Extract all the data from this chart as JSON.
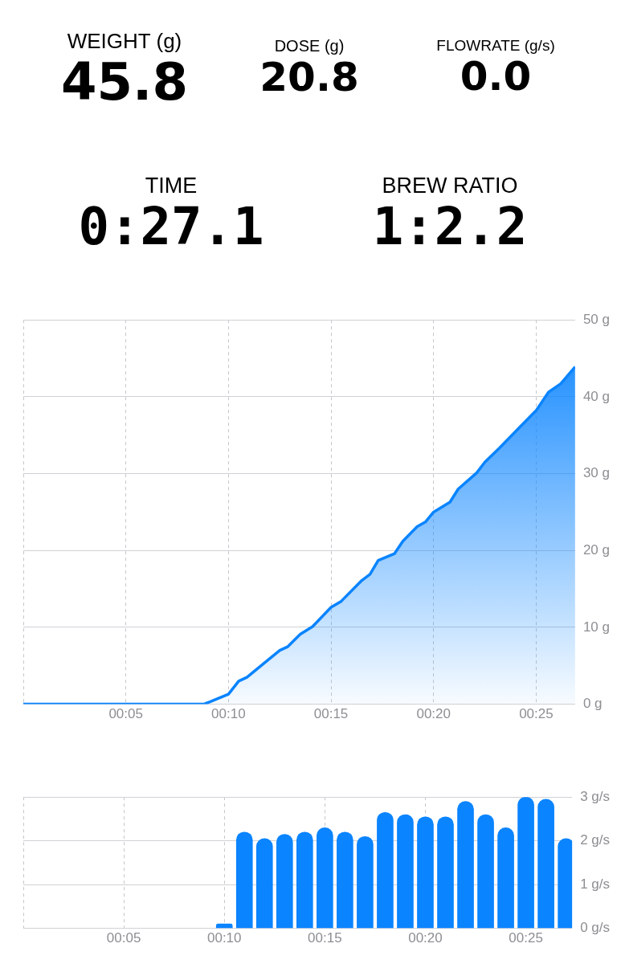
{
  "chart_data": [
    {
      "type": "other",
      "annotations": [
        "WEIGHT (g)",
        "45.8",
        "DOSE (g)",
        "20.8",
        "FLOWRATE (g/s)",
        "0.0",
        "TIME",
        "0:27.1",
        "BREW RATIO",
        "1:2.2"
      ]
    },
    {
      "type": "area",
      "x": [
        0,
        8.8,
        9.1,
        10.0,
        10.5,
        10.9,
        11.4,
        12.5,
        12.9,
        13.5,
        14.1,
        15.0,
        15.5,
        16.5,
        16.9,
        17.3,
        18.1,
        18.5,
        19.2,
        19.6,
        20.0,
        20.8,
        21.2,
        22.1,
        22.5,
        23.2,
        24.0,
        24.7,
        25.0,
        25.6,
        26.2,
        26.9
      ],
      "series": [
        {
          "color": "#0a84ff",
          "values": [
            0,
            0,
            0.3,
            1.3,
            3.0,
            3.5,
            4.6,
            7.0,
            7.5,
            9.1,
            10.1,
            12.6,
            13.4,
            16.1,
            16.9,
            18.7,
            19.6,
            21.2,
            23.1,
            23.7,
            25.0,
            26.3,
            28.0,
            30.1,
            31.5,
            33.3,
            35.5,
            37.4,
            38.2,
            40.6,
            41.7,
            43.9
          ]
        }
      ],
      "xlim": [
        0,
        26.9
      ],
      "xticks": [
        {
          "value": 0,
          "label": null
        },
        {
          "value": 5,
          "label": "00:05"
        },
        {
          "value": 10,
          "label": "00:10"
        },
        {
          "value": 15,
          "label": "00:15"
        },
        {
          "value": 20,
          "label": "00:20"
        },
        {
          "value": 25,
          "label": "00:25"
        }
      ],
      "ylim": [
        0,
        50
      ],
      "yticks": [
        {
          "value": 0,
          "label": "0 g"
        },
        {
          "value": 10,
          "label": "10 g"
        },
        {
          "value": 20,
          "label": "20 g"
        },
        {
          "value": 30,
          "label": "30 g"
        },
        {
          "value": 40,
          "label": "40 g"
        },
        {
          "value": 50,
          "label": "50 g"
        }
      ],
      "grid": true,
      "legend": false
    },
    {
      "type": "bar",
      "x": [
        10,
        11,
        12,
        13,
        14,
        15,
        16,
        17,
        18,
        19,
        20,
        21,
        22,
        23,
        24,
        25,
        26,
        27
      ],
      "series": [
        {
          "color": "#0a84ff",
          "values": [
            0.1,
            2.2,
            2.05,
            2.15,
            2.2,
            2.3,
            2.2,
            2.1,
            2.65,
            2.6,
            2.55,
            2.55,
            2.9,
            2.6,
            2.3,
            3.0,
            2.95,
            2.05
          ]
        }
      ],
      "xlim": [
        0,
        27.3
      ],
      "xticks": [
        {
          "value": 0,
          "label": null
        },
        {
          "value": 5,
          "label": "00:05"
        },
        {
          "value": 10,
          "label": "00:10"
        },
        {
          "value": 15,
          "label": "00:15"
        },
        {
          "value": 20,
          "label": "00:20"
        },
        {
          "value": 25,
          "label": "00:25"
        }
      ],
      "ylim": [
        0,
        3
      ],
      "yticks": [
        {
          "value": 0,
          "label": "0 g/s"
        },
        {
          "value": 1,
          "label": "1 g/s"
        },
        {
          "value": 2,
          "label": "2 g/s"
        },
        {
          "value": 3,
          "label": "3 g/s"
        }
      ],
      "grid": true,
      "legend": false
    }
  ]
}
